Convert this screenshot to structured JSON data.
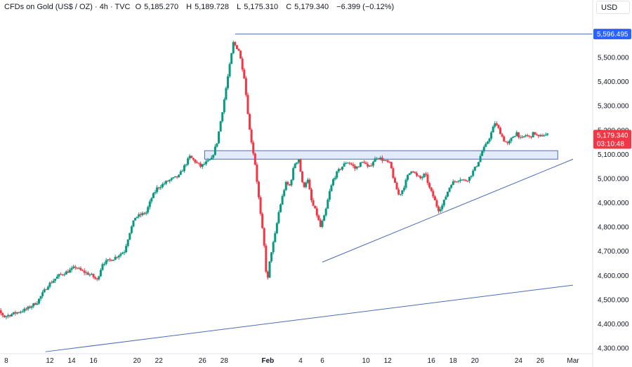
{
  "header": {
    "symbol": "CFDs on Gold (US$ / OZ) · 4h · TVC",
    "open_label": "O",
    "open": "5,185.270",
    "high_label": "H",
    "high": "5,189.728",
    "low_label": "L",
    "low": "5,175.310",
    "close_label": "C",
    "close": "5,179.340",
    "change": "−6.399 (−0.12%)"
  },
  "currency": "USD",
  "price_tags": {
    "high_level": "5,596.495",
    "last_price": "5,179.340",
    "countdown": "03:10:48"
  },
  "colors": {
    "up": "#089981",
    "down": "#f23645",
    "line": "#4a6cb5",
    "zone_fill": "#e3ebfb",
    "high_tag": "#2962ff",
    "last_tag": "#f23645"
  },
  "chart_data": {
    "type": "candlestick",
    "y_axis": {
      "range": [
        4290,
        5660
      ],
      "ticks": [
        4300,
        4400,
        4500,
        4600,
        4700,
        4800,
        4900,
        5000,
        5100,
        5200,
        5300,
        5400,
        5500
      ],
      "tick_labels": [
        "4,300.000",
        "4,400.000",
        "4,500.000",
        "4,600.000",
        "4,700.000",
        "4,800.000",
        "4,900.000",
        "5,000.000",
        "5,100.000",
        "5,200.000",
        "5,300.000",
        "5,400.000",
        "5,500.000"
      ]
    },
    "x_axis": {
      "labels": [
        {
          "text": "8",
          "day": 8
        },
        {
          "text": "12",
          "day": 12
        },
        {
          "text": "14",
          "day": 14
        },
        {
          "text": "16",
          "day": 16
        },
        {
          "text": "20",
          "day": 20
        },
        {
          "text": "22",
          "day": 22
        },
        {
          "text": "26",
          "day": 26
        },
        {
          "text": "28",
          "day": 28
        },
        {
          "text": "Feb",
          "day": 32,
          "bold": true
        },
        {
          "text": "4",
          "day": 35
        },
        {
          "text": "6",
          "day": 37
        },
        {
          "text": "10",
          "day": 41
        },
        {
          "text": "12",
          "day": 43
        },
        {
          "text": "16",
          "day": 47
        },
        {
          "text": "18",
          "day": 49
        },
        {
          "text": "20",
          "day": 51
        },
        {
          "text": "24",
          "day": 55
        },
        {
          "text": "26",
          "day": 57
        },
        {
          "text": "Mar",
          "day": 60
        }
      ]
    },
    "price_path": [
      [
        6.0,
        4490
      ],
      [
        7.0,
        4470
      ],
      [
        8.0,
        4430
      ],
      [
        9.0,
        4445
      ],
      [
        10.0,
        4460
      ],
      [
        11.0,
        4490
      ],
      [
        12.0,
        4560
      ],
      [
        13.0,
        4600
      ],
      [
        14.0,
        4620
      ],
      [
        14.5,
        4635
      ],
      [
        15.0,
        4620
      ],
      [
        16.0,
        4600
      ],
      [
        16.5,
        4580
      ],
      [
        17.0,
        4650
      ],
      [
        18.0,
        4670
      ],
      [
        19.0,
        4700
      ],
      [
        19.5,
        4780
      ],
      [
        20.0,
        4840
      ],
      [
        21.0,
        4860
      ],
      [
        21.5,
        4920
      ],
      [
        22.0,
        4960
      ],
      [
        23.0,
        4990
      ],
      [
        24.0,
        5010
      ],
      [
        25.0,
        5090
      ],
      [
        26.0,
        5050
      ],
      [
        27.0,
        5080
      ],
      [
        27.5,
        5150
      ],
      [
        28.0,
        5280
      ],
      [
        28.5,
        5420
      ],
      [
        29.0,
        5560
      ],
      [
        29.5,
        5530
      ],
      [
        30.0,
        5420
      ],
      [
        30.5,
        5200
      ],
      [
        31.0,
        5060
      ],
      [
        31.5,
        4850
      ],
      [
        31.8,
        4740
      ],
      [
        32.1,
        4560
      ],
      [
        32.4,
        4680
      ],
      [
        32.8,
        4760
      ],
      [
        33.2,
        4870
      ],
      [
        33.8,
        4980
      ],
      [
        34.2,
        4970
      ],
      [
        34.6,
        5060
      ],
      [
        35.0,
        5080
      ],
      [
        35.4,
        4960
      ],
      [
        35.8,
        5000
      ],
      [
        36.2,
        4900
      ],
      [
        36.6,
        4860
      ],
      [
        37.0,
        4800
      ],
      [
        37.4,
        4850
      ],
      [
        37.8,
        4940
      ],
      [
        38.2,
        5000
      ],
      [
        38.6,
        5030
      ],
      [
        39.0,
        5050
      ],
      [
        39.4,
        5070
      ],
      [
        39.8,
        5060
      ],
      [
        40.2,
        5040
      ],
      [
        40.6,
        5060
      ],
      [
        41.0,
        5070
      ],
      [
        41.4,
        5040
      ],
      [
        41.8,
        5070
      ],
      [
        42.2,
        5090
      ],
      [
        42.6,
        5080
      ],
      [
        43.0,
        5070
      ],
      [
        43.4,
        5060
      ],
      [
        43.8,
        4980
      ],
      [
        44.2,
        4930
      ],
      [
        44.6,
        4960
      ],
      [
        45.0,
        5010
      ],
      [
        45.4,
        5040
      ],
      [
        45.8,
        5010
      ],
      [
        46.2,
        5000
      ],
      [
        46.6,
        5020
      ],
      [
        47.0,
        4960
      ],
      [
        47.4,
        4920
      ],
      [
        47.8,
        4870
      ],
      [
        48.2,
        4890
      ],
      [
        48.6,
        4940
      ],
      [
        49.0,
        4980
      ],
      [
        49.4,
        4990
      ],
      [
        49.8,
        5000
      ],
      [
        50.2,
        4990
      ],
      [
        50.6,
        5000
      ],
      [
        51.0,
        5030
      ],
      [
        51.4,
        5060
      ],
      [
        51.8,
        5110
      ],
      [
        52.2,
        5140
      ],
      [
        52.6,
        5180
      ],
      [
        53.0,
        5230
      ],
      [
        53.4,
        5200
      ],
      [
        53.8,
        5160
      ],
      [
        54.2,
        5140
      ],
      [
        54.6,
        5170
      ],
      [
        55.0,
        5190
      ],
      [
        55.4,
        5160
      ],
      [
        55.8,
        5180
      ],
      [
        56.2,
        5170
      ],
      [
        56.6,
        5190
      ],
      [
        57.0,
        5170
      ],
      [
        57.4,
        5180
      ],
      [
        57.8,
        5180
      ]
    ],
    "annotations": {
      "resistance_level": 5596.495,
      "support_zone": [
        5080,
        5115
      ],
      "triangle_upper": {
        "from": [
          26.2,
          5112
        ],
        "to": [
          58.6,
          5112
        ]
      },
      "triangle_lower": {
        "from": [
          26.2,
          5080
        ],
        "to": [
          58.6,
          5080
        ]
      },
      "rising_trendline": {
        "from": [
          37.0,
          4655
        ],
        "to": [
          60.0,
          5080
        ]
      },
      "long_trendline": {
        "from": [
          11.6,
          4285
        ],
        "to": [
          60.0,
          4560
        ]
      }
    }
  }
}
